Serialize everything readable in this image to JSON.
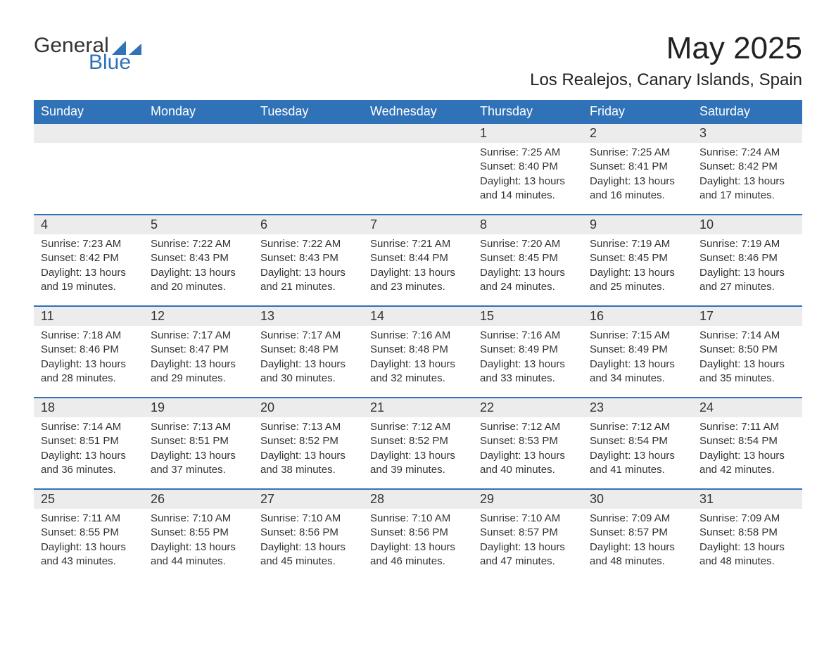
{
  "logo": {
    "text_a": "General",
    "text_b": "Blue"
  },
  "colors": {
    "brand_blue": "#2f72b8",
    "header_text": "#ffffff",
    "daynum_bg": "#ececec",
    "body_text": "#333333",
    "page_bg": "#ffffff"
  },
  "title": "May 2025",
  "subtitle": "Los Realejos, Canary Islands, Spain",
  "weekday_labels": [
    "Sunday",
    "Monday",
    "Tuesday",
    "Wednesday",
    "Thursday",
    "Friday",
    "Saturday"
  ],
  "weeks": [
    [
      {
        "empty": true
      },
      {
        "empty": true
      },
      {
        "empty": true
      },
      {
        "empty": true
      },
      {
        "date": "1",
        "sunrise": "Sunrise: 7:25 AM",
        "sunset": "Sunset: 8:40 PM",
        "daylight1": "Daylight: 13 hours",
        "daylight2": "and 14 minutes."
      },
      {
        "date": "2",
        "sunrise": "Sunrise: 7:25 AM",
        "sunset": "Sunset: 8:41 PM",
        "daylight1": "Daylight: 13 hours",
        "daylight2": "and 16 minutes."
      },
      {
        "date": "3",
        "sunrise": "Sunrise: 7:24 AM",
        "sunset": "Sunset: 8:42 PM",
        "daylight1": "Daylight: 13 hours",
        "daylight2": "and 17 minutes."
      }
    ],
    [
      {
        "date": "4",
        "sunrise": "Sunrise: 7:23 AM",
        "sunset": "Sunset: 8:42 PM",
        "daylight1": "Daylight: 13 hours",
        "daylight2": "and 19 minutes."
      },
      {
        "date": "5",
        "sunrise": "Sunrise: 7:22 AM",
        "sunset": "Sunset: 8:43 PM",
        "daylight1": "Daylight: 13 hours",
        "daylight2": "and 20 minutes."
      },
      {
        "date": "6",
        "sunrise": "Sunrise: 7:22 AM",
        "sunset": "Sunset: 8:43 PM",
        "daylight1": "Daylight: 13 hours",
        "daylight2": "and 21 minutes."
      },
      {
        "date": "7",
        "sunrise": "Sunrise: 7:21 AM",
        "sunset": "Sunset: 8:44 PM",
        "daylight1": "Daylight: 13 hours",
        "daylight2": "and 23 minutes."
      },
      {
        "date": "8",
        "sunrise": "Sunrise: 7:20 AM",
        "sunset": "Sunset: 8:45 PM",
        "daylight1": "Daylight: 13 hours",
        "daylight2": "and 24 minutes."
      },
      {
        "date": "9",
        "sunrise": "Sunrise: 7:19 AM",
        "sunset": "Sunset: 8:45 PM",
        "daylight1": "Daylight: 13 hours",
        "daylight2": "and 25 minutes."
      },
      {
        "date": "10",
        "sunrise": "Sunrise: 7:19 AM",
        "sunset": "Sunset: 8:46 PM",
        "daylight1": "Daylight: 13 hours",
        "daylight2": "and 27 minutes."
      }
    ],
    [
      {
        "date": "11",
        "sunrise": "Sunrise: 7:18 AM",
        "sunset": "Sunset: 8:46 PM",
        "daylight1": "Daylight: 13 hours",
        "daylight2": "and 28 minutes."
      },
      {
        "date": "12",
        "sunrise": "Sunrise: 7:17 AM",
        "sunset": "Sunset: 8:47 PM",
        "daylight1": "Daylight: 13 hours",
        "daylight2": "and 29 minutes."
      },
      {
        "date": "13",
        "sunrise": "Sunrise: 7:17 AM",
        "sunset": "Sunset: 8:48 PM",
        "daylight1": "Daylight: 13 hours",
        "daylight2": "and 30 minutes."
      },
      {
        "date": "14",
        "sunrise": "Sunrise: 7:16 AM",
        "sunset": "Sunset: 8:48 PM",
        "daylight1": "Daylight: 13 hours",
        "daylight2": "and 32 minutes."
      },
      {
        "date": "15",
        "sunrise": "Sunrise: 7:16 AM",
        "sunset": "Sunset: 8:49 PM",
        "daylight1": "Daylight: 13 hours",
        "daylight2": "and 33 minutes."
      },
      {
        "date": "16",
        "sunrise": "Sunrise: 7:15 AM",
        "sunset": "Sunset: 8:49 PM",
        "daylight1": "Daylight: 13 hours",
        "daylight2": "and 34 minutes."
      },
      {
        "date": "17",
        "sunrise": "Sunrise: 7:14 AM",
        "sunset": "Sunset: 8:50 PM",
        "daylight1": "Daylight: 13 hours",
        "daylight2": "and 35 minutes."
      }
    ],
    [
      {
        "date": "18",
        "sunrise": "Sunrise: 7:14 AM",
        "sunset": "Sunset: 8:51 PM",
        "daylight1": "Daylight: 13 hours",
        "daylight2": "and 36 minutes."
      },
      {
        "date": "19",
        "sunrise": "Sunrise: 7:13 AM",
        "sunset": "Sunset: 8:51 PM",
        "daylight1": "Daylight: 13 hours",
        "daylight2": "and 37 minutes."
      },
      {
        "date": "20",
        "sunrise": "Sunrise: 7:13 AM",
        "sunset": "Sunset: 8:52 PM",
        "daylight1": "Daylight: 13 hours",
        "daylight2": "and 38 minutes."
      },
      {
        "date": "21",
        "sunrise": "Sunrise: 7:12 AM",
        "sunset": "Sunset: 8:52 PM",
        "daylight1": "Daylight: 13 hours",
        "daylight2": "and 39 minutes."
      },
      {
        "date": "22",
        "sunrise": "Sunrise: 7:12 AM",
        "sunset": "Sunset: 8:53 PM",
        "daylight1": "Daylight: 13 hours",
        "daylight2": "and 40 minutes."
      },
      {
        "date": "23",
        "sunrise": "Sunrise: 7:12 AM",
        "sunset": "Sunset: 8:54 PM",
        "daylight1": "Daylight: 13 hours",
        "daylight2": "and 41 minutes."
      },
      {
        "date": "24",
        "sunrise": "Sunrise: 7:11 AM",
        "sunset": "Sunset: 8:54 PM",
        "daylight1": "Daylight: 13 hours",
        "daylight2": "and 42 minutes."
      }
    ],
    [
      {
        "date": "25",
        "sunrise": "Sunrise: 7:11 AM",
        "sunset": "Sunset: 8:55 PM",
        "daylight1": "Daylight: 13 hours",
        "daylight2": "and 43 minutes."
      },
      {
        "date": "26",
        "sunrise": "Sunrise: 7:10 AM",
        "sunset": "Sunset: 8:55 PM",
        "daylight1": "Daylight: 13 hours",
        "daylight2": "and 44 minutes."
      },
      {
        "date": "27",
        "sunrise": "Sunrise: 7:10 AM",
        "sunset": "Sunset: 8:56 PM",
        "daylight1": "Daylight: 13 hours",
        "daylight2": "and 45 minutes."
      },
      {
        "date": "28",
        "sunrise": "Sunrise: 7:10 AM",
        "sunset": "Sunset: 8:56 PM",
        "daylight1": "Daylight: 13 hours",
        "daylight2": "and 46 minutes."
      },
      {
        "date": "29",
        "sunrise": "Sunrise: 7:10 AM",
        "sunset": "Sunset: 8:57 PM",
        "daylight1": "Daylight: 13 hours",
        "daylight2": "and 47 minutes."
      },
      {
        "date": "30",
        "sunrise": "Sunrise: 7:09 AM",
        "sunset": "Sunset: 8:57 PM",
        "daylight1": "Daylight: 13 hours",
        "daylight2": "and 48 minutes."
      },
      {
        "date": "31",
        "sunrise": "Sunrise: 7:09 AM",
        "sunset": "Sunset: 8:58 PM",
        "daylight1": "Daylight: 13 hours",
        "daylight2": "and 48 minutes."
      }
    ]
  ]
}
